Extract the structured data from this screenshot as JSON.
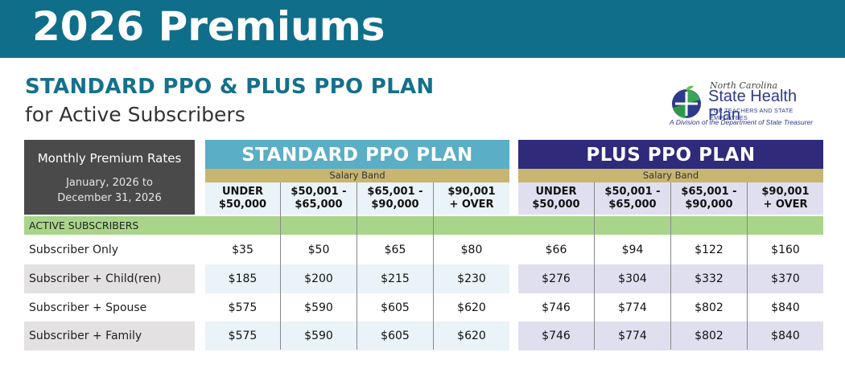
{
  "banner": {
    "title": "2026 Premiums"
  },
  "heading": {
    "line1": "STANDARD PPO & PLUS PPO PLAN",
    "line2": "for Active Subscribers"
  },
  "logo": {
    "top_text": "North Carolina",
    "name": "State Health Plan",
    "subtitle": "FOR TEACHERS AND STATE EMPLOYEES",
    "division": "A Division of the Department of State Treasurer"
  },
  "rates_box": {
    "title": "Monthly Premium Rates",
    "dates_line1": "January, 2026 to",
    "dates_line2": "December 31, 2026"
  },
  "plans": [
    {
      "name": "STANDARD PPO PLAN",
      "band_label": "Salary Band"
    },
    {
      "name": "PLUS PPO PLAN",
      "band_label": "Salary Band"
    }
  ],
  "salary_bands": [
    {
      "line1": "UNDER",
      "line2": "$50,000"
    },
    {
      "line1": "$50,001 -",
      "line2": "$65,000"
    },
    {
      "line1": "$65,001 -",
      "line2": "$90,000"
    },
    {
      "line1": "$90,001",
      "line2": "+ OVER"
    }
  ],
  "section_label": "ACTIVE SUBSCRIBERS",
  "rows": [
    {
      "label": "Subscriber Only",
      "standard": [
        "$35",
        "$50",
        "$65",
        "$80"
      ],
      "plus": [
        "$66",
        "$94",
        "$122",
        "$160"
      ]
    },
    {
      "label": "Subscriber + Child(ren)",
      "standard": [
        "$185",
        "$200",
        "$215",
        "$230"
      ],
      "plus": [
        "$276",
        "$304",
        "$332",
        "$370"
      ]
    },
    {
      "label": "Subscriber + Spouse",
      "standard": [
        "$575",
        "$590",
        "$605",
        "$620"
      ],
      "plus": [
        "$746",
        "$774",
        "$802",
        "$840"
      ]
    },
    {
      "label": "Subscriber + Family",
      "standard": [
        "$575",
        "$590",
        "$605",
        "$620"
      ],
      "plus": [
        "$746",
        "$774",
        "$802",
        "$840"
      ]
    }
  ],
  "colors": {
    "banner": "#0f6e8a",
    "heading": "#15708c",
    "standard": "#5aaec6",
    "plus": "#2f2a7a",
    "band": "#c8b570",
    "section": "#a8d58a"
  }
}
